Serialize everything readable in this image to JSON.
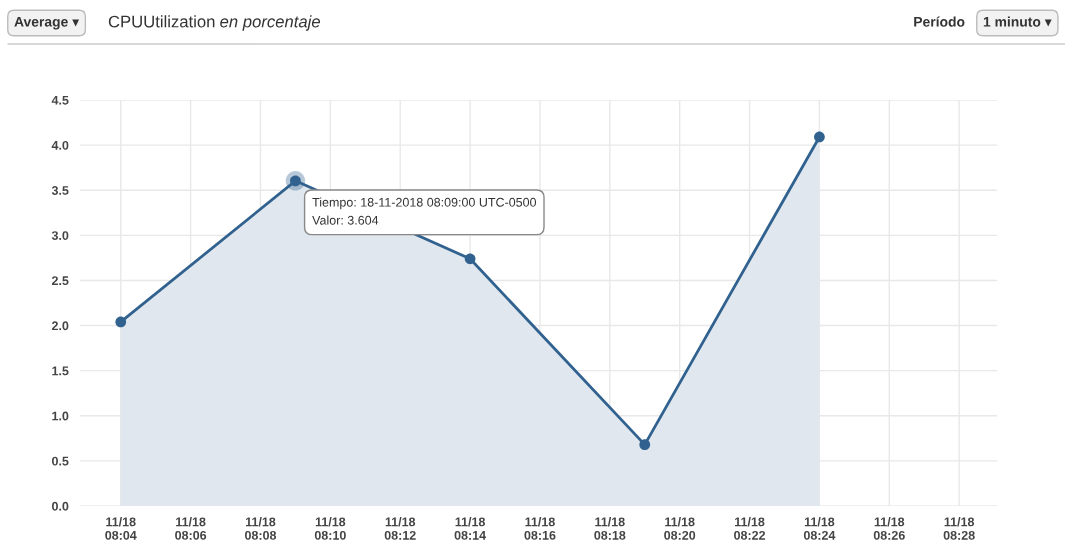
{
  "chart_data": {
    "type": "area",
    "title": "CPUUtilization en porcentaje",
    "x": [
      "2018-11-18T08:04",
      "2018-11-18T08:09",
      "2018-11-18T08:14",
      "2018-11-18T08:19",
      "2018-11-18T08:24"
    ],
    "series": [
      {
        "color": "#31628f",
        "values": [
          2.04,
          3.604,
          2.74,
          0.68,
          4.09
        ]
      }
    ],
    "xlim": [
      "2018-11-18T08:02:50",
      "2018-11-18T08:29:05"
    ],
    "xticks": [
      {
        "value": "2018-11-18T08:04",
        "label": "11/18\n08:04"
      },
      {
        "value": "2018-11-18T08:06",
        "label": "11/18\n08:06"
      },
      {
        "value": "2018-11-18T08:08",
        "label": "11/18\n08:08"
      },
      {
        "value": "2018-11-18T08:10",
        "label": "11/18\n08:10"
      },
      {
        "value": "2018-11-18T08:12",
        "label": "11/18\n08:12"
      },
      {
        "value": "2018-11-18T08:14",
        "label": "11/18\n08:14"
      },
      {
        "value": "2018-11-18T08:16",
        "label": "11/18\n08:16"
      },
      {
        "value": "2018-11-18T08:18",
        "label": "11/18\n08:18"
      },
      {
        "value": "2018-11-18T08:20",
        "label": "11/18\n08:20"
      },
      {
        "value": "2018-11-18T08:22",
        "label": "11/18\n08:22"
      },
      {
        "value": "2018-11-18T08:24",
        "label": "11/18\n08:24"
      },
      {
        "value": "2018-11-18T08:26",
        "label": "11/18\n08:26"
      },
      {
        "value": "2018-11-18T08:28",
        "label": "11/18\n08:28"
      }
    ],
    "ylim": [
      0,
      4.5
    ],
    "yticks": [
      {
        "value": 0,
        "label": "0.0"
      },
      {
        "value": 0.5,
        "label": "0.5"
      },
      {
        "value": 1,
        "label": "1.0"
      },
      {
        "value": 1.5,
        "label": "1.5"
      },
      {
        "value": 2,
        "label": "2.0"
      },
      {
        "value": 2.5,
        "label": "2.5"
      },
      {
        "value": 3,
        "label": "3.0"
      },
      {
        "value": 3.5,
        "label": "3.5"
      },
      {
        "value": 4,
        "label": "4.0"
      },
      {
        "value": 4.5,
        "label": "4.5"
      }
    ],
    "grid": true,
    "marker": "circle",
    "line_style": "solid",
    "legend": false,
    "annotations": [
      "Average ▾",
      "Período",
      "1 minuto ▾",
      {
        "text": "Tiempo: 18-11-2018 08:09:00 UTC-0500\nValor: 3.604",
        "x": "2018-11-18T08:09",
        "y": 3.604
      }
    ]
  }
}
